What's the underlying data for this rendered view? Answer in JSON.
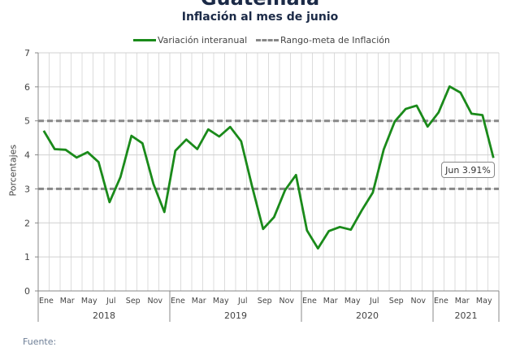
{
  "header": {
    "title": "Guatemala",
    "subtitle": "Inflación al mes de junio"
  },
  "footer": {
    "source_label": "Fuente:"
  },
  "colors": {
    "series": "#1a8a1a",
    "target": "#888888",
    "title": "#1b2a47"
  },
  "chart_data": {
    "type": "line",
    "title": "Guatemala",
    "subtitle": "Inflación al mes de junio",
    "xlabel": "",
    "ylabel": "Porcentajes",
    "ylim": [
      0,
      7
    ],
    "yticks": [
      "0",
      "1",
      "2",
      "3",
      "4",
      "5",
      "6",
      "7"
    ],
    "grid": true,
    "legend_position": "top-center",
    "legend": [
      "Variación interanual",
      "Rango-meta de Inflación"
    ],
    "years": [
      "2018",
      "2019",
      "2020",
      "2021"
    ],
    "month_tick_labels": [
      "Ene",
      "Mar",
      "May",
      "Jul",
      "Sep",
      "Nov",
      "Ene",
      "Mar",
      "May",
      "Jul",
      "Sep",
      "Nov",
      "Ene",
      "Mar",
      "May",
      "Jul",
      "Sep",
      "Nov",
      "Ene",
      "Mar",
      "May"
    ],
    "x": [
      "2018-01",
      "2018-02",
      "2018-03",
      "2018-04",
      "2018-05",
      "2018-06",
      "2018-07",
      "2018-08",
      "2018-09",
      "2018-10",
      "2018-11",
      "2018-12",
      "2019-01",
      "2019-02",
      "2019-03",
      "2019-04",
      "2019-05",
      "2019-06",
      "2019-07",
      "2019-08",
      "2019-09",
      "2019-10",
      "2019-11",
      "2019-12",
      "2020-01",
      "2020-02",
      "2020-03",
      "2020-04",
      "2020-05",
      "2020-06",
      "2020-07",
      "2020-08",
      "2020-09",
      "2020-10",
      "2020-11",
      "2020-12",
      "2021-01",
      "2021-02",
      "2021-03",
      "2021-04",
      "2021-05",
      "2021-06"
    ],
    "series": [
      {
        "name": "Variación interanual",
        "style": "solid",
        "values": [
          4.71,
          4.17,
          4.15,
          3.92,
          4.08,
          3.79,
          2.61,
          3.35,
          4.56,
          4.34,
          3.15,
          2.32,
          4.12,
          4.45,
          4.17,
          4.75,
          4.54,
          4.82,
          4.4,
          3.07,
          1.82,
          2.17,
          2.96,
          3.41,
          1.78,
          1.25,
          1.76,
          1.88,
          1.8,
          2.37,
          2.89,
          4.16,
          4.98,
          5.35,
          5.45,
          4.83,
          5.25,
          6.01,
          5.83,
          5.21,
          5.17,
          3.91
        ]
      },
      {
        "name": "Rango-meta de Inflación",
        "style": "dashed",
        "lower": 3,
        "upper": 5
      }
    ],
    "annotations": [
      {
        "label": "Jun 3.91%",
        "x": "2021-06",
        "value": 3.91
      }
    ]
  }
}
